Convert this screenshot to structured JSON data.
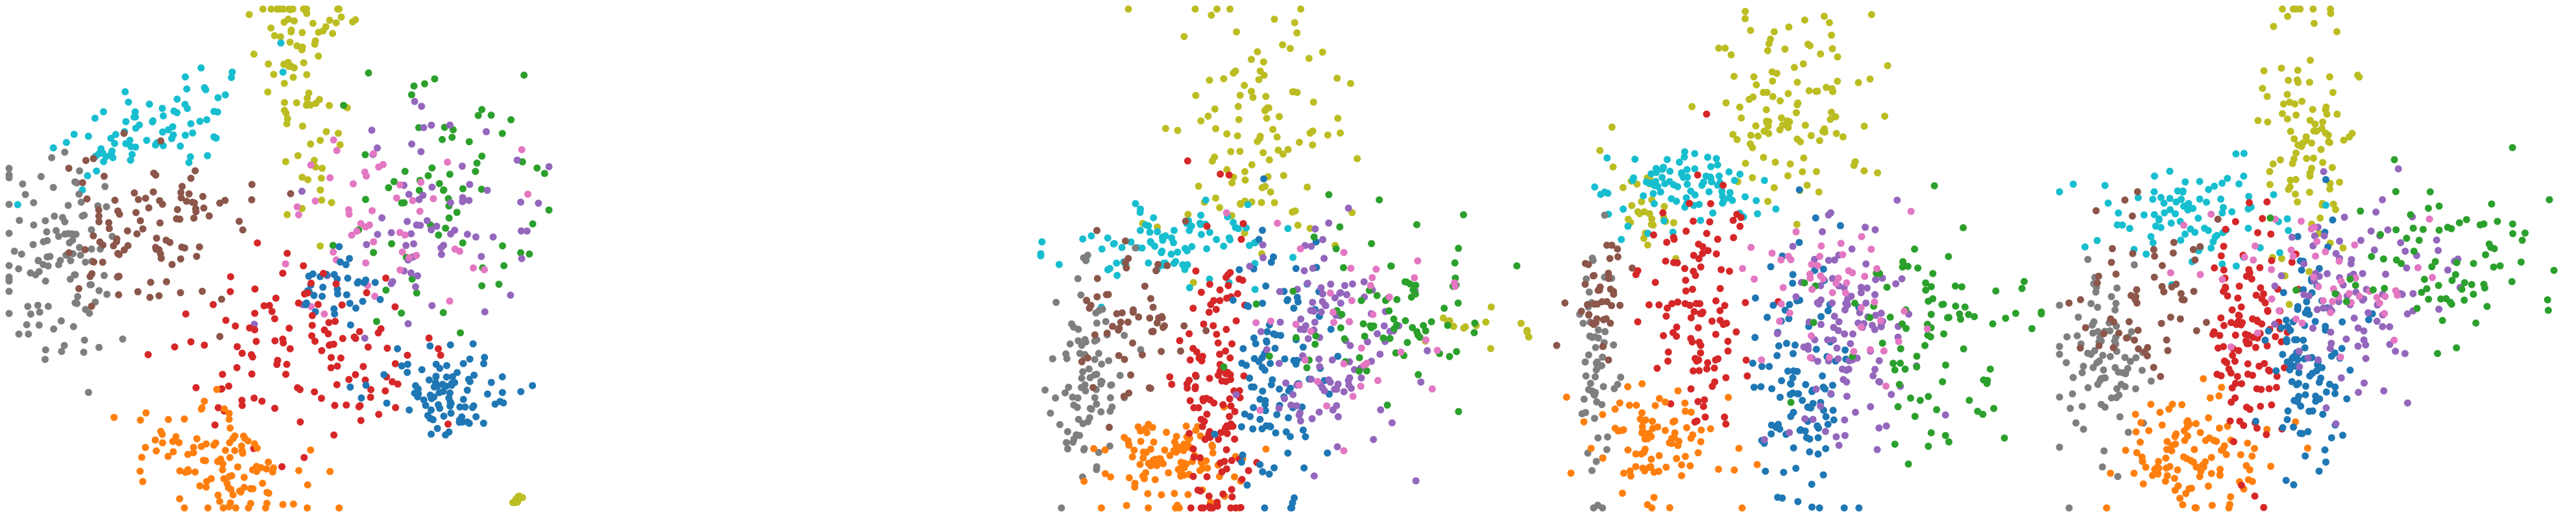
{
  "figure": {
    "title": "",
    "panel_count": 4
  },
  "palette": {
    "c0": "#1f77b4",
    "c1": "#ff7f0e",
    "c2": "#2ca02c",
    "c3": "#d62728",
    "c4": "#9467bd",
    "c5": "#8c564b",
    "c6": "#e377c2",
    "c7": "#7f7f7f",
    "c8": "#bcbd22",
    "c9": "#17becf"
  },
  "chart_data": [
    {
      "type": "scatter",
      "title": "",
      "xlabel": "",
      "ylabel": "",
      "axes_visible": false,
      "grid": false,
      "xlim": [
        0,
        100
      ],
      "ylim": [
        0,
        100
      ],
      "clusters": [
        {
          "color": "c8",
          "cx": 54,
          "cy": 83,
          "sx": 3.2,
          "sy": 14,
          "rot": 5,
          "n": 70
        },
        {
          "color": "c8",
          "cx": 57,
          "cy": 97,
          "sx": 5,
          "sy": 2,
          "rot": 0,
          "n": 20
        },
        {
          "color": "c9",
          "cx": 26,
          "cy": 77,
          "sx": 13,
          "sy": 4,
          "rot": 25,
          "n": 80
        },
        {
          "color": "c7",
          "cx": 9,
          "cy": 50,
          "sx": 6,
          "sy": 11,
          "rot": 0,
          "n": 110
        },
        {
          "color": "c5",
          "cx": 23,
          "cy": 54,
          "sx": 7,
          "sy": 9,
          "rot": 20,
          "n": 70
        },
        {
          "color": "c5",
          "cx": 33,
          "cy": 61,
          "sx": 6,
          "sy": 3,
          "rot": 0,
          "n": 30
        },
        {
          "color": "c2",
          "cx": 82,
          "cy": 63,
          "sx": 9,
          "sy": 12,
          "rot": 0,
          "n": 70
        },
        {
          "color": "c4",
          "cx": 78,
          "cy": 59,
          "sx": 10,
          "sy": 12,
          "rot": 0,
          "n": 70
        },
        {
          "color": "c6",
          "cx": 68,
          "cy": 56,
          "sx": 11,
          "sy": 9,
          "rot": 0,
          "n": 50
        },
        {
          "color": "c0",
          "cx": 61,
          "cy": 44,
          "sx": 4,
          "sy": 3,
          "rot": 0,
          "n": 35
        },
        {
          "color": "c3",
          "cx": 54,
          "cy": 31,
          "sx": 12,
          "sy": 9,
          "rot": -10,
          "n": 120
        },
        {
          "color": "c0",
          "cx": 81,
          "cy": 24,
          "sx": 6,
          "sy": 4,
          "rot": 0,
          "n": 90
        },
        {
          "color": "c1",
          "cx": 39,
          "cy": 9,
          "sx": 9,
          "sy": 5,
          "rot": -20,
          "n": 110
        },
        {
          "color": "c8",
          "cx": 94,
          "cy": 2,
          "sx": 0.6,
          "sy": 0.8,
          "rot": 0,
          "n": 10
        }
      ]
    },
    {
      "type": "scatter",
      "title": "",
      "xlabel": "",
      "ylabel": "",
      "axes_visible": false,
      "grid": false,
      "xlim": [
        0,
        100
      ],
      "ylim": [
        0,
        100
      ],
      "clusters": [
        {
          "color": "c8",
          "cx": 43,
          "cy": 73,
          "sx": 9,
          "sy": 13,
          "rot": 0,
          "n": 110
        },
        {
          "color": "c8",
          "cx": 91,
          "cy": 36,
          "sx": 6,
          "sy": 3,
          "rot": 0,
          "n": 15
        },
        {
          "color": "c9",
          "cx": 25,
          "cy": 53,
          "sx": 10,
          "sy": 4,
          "rot": 0,
          "n": 90
        },
        {
          "color": "c7",
          "cx": 10,
          "cy": 27,
          "sx": 4,
          "sy": 12,
          "rot": 0,
          "n": 90
        },
        {
          "color": "c5",
          "cx": 19,
          "cy": 37,
          "sx": 6,
          "sy": 8,
          "rot": 0,
          "n": 60
        },
        {
          "color": "c1",
          "cx": 26,
          "cy": 9,
          "sx": 7,
          "sy": 5,
          "rot": 0,
          "n": 110
        },
        {
          "color": "c3",
          "cx": 36,
          "cy": 24,
          "sx": 4,
          "sy": 14,
          "rot": 0,
          "n": 130
        },
        {
          "color": "c0",
          "cx": 48,
          "cy": 28,
          "sx": 5,
          "sy": 13,
          "rot": 0,
          "n": 110
        },
        {
          "color": "c4",
          "cx": 59,
          "cy": 34,
          "sx": 7,
          "sy": 11,
          "rot": 0,
          "n": 110
        },
        {
          "color": "c2",
          "cx": 70,
          "cy": 39,
          "sx": 10,
          "sy": 9,
          "rot": 0,
          "n": 80
        },
        {
          "color": "c6",
          "cx": 65,
          "cy": 36,
          "sx": 10,
          "sy": 9,
          "rot": 0,
          "n": 40
        }
      ]
    },
    {
      "type": "scatter",
      "title": "",
      "xlabel": "",
      "ylabel": "",
      "axes_visible": false,
      "grid": false,
      "xlim": [
        0,
        100
      ],
      "ylim": [
        0,
        100
      ],
      "clusters": [
        {
          "color": "c8",
          "cx": 49,
          "cy": 80,
          "sx": 8,
          "sy": 10,
          "rot": 0,
          "n": 110
        },
        {
          "color": "c8",
          "cx": 20,
          "cy": 60,
          "sx": 3,
          "sy": 7,
          "rot": 30,
          "n": 30
        },
        {
          "color": "c9",
          "cx": 28,
          "cy": 64,
          "sx": 8,
          "sy": 4,
          "rot": 0,
          "n": 90
        },
        {
          "color": "c7",
          "cx": 10,
          "cy": 28,
          "sx": 2,
          "sy": 12,
          "rot": 0,
          "n": 60
        },
        {
          "color": "c5",
          "cx": 11,
          "cy": 42,
          "sx": 3,
          "sy": 6,
          "rot": 0,
          "n": 40
        },
        {
          "color": "c3",
          "cx": 30,
          "cy": 40,
          "sx": 6,
          "sy": 13,
          "rot": 0,
          "n": 110
        },
        {
          "color": "c1",
          "cx": 23,
          "cy": 12,
          "sx": 7,
          "sy": 6,
          "rot": 0,
          "n": 90
        },
        {
          "color": "c0",
          "cx": 52,
          "cy": 22,
          "sx": 5,
          "sy": 14,
          "rot": 0,
          "n": 110
        },
        {
          "color": "c4",
          "cx": 62,
          "cy": 34,
          "sx": 6,
          "sy": 12,
          "rot": 0,
          "n": 110
        },
        {
          "color": "c2",
          "cx": 78,
          "cy": 36,
          "sx": 9,
          "sy": 11,
          "rot": 0,
          "n": 90
        },
        {
          "color": "c6",
          "cx": 57,
          "cy": 44,
          "sx": 9,
          "sy": 8,
          "rot": 0,
          "n": 50
        }
      ]
    },
    {
      "type": "scatter",
      "title": "",
      "xlabel": "",
      "ylabel": "",
      "axes_visible": false,
      "grid": false,
      "xlim": [
        0,
        100
      ],
      "ylim": [
        0,
        100
      ],
      "clusters": [
        {
          "color": "c8",
          "cx": 50,
          "cy": 75,
          "sx": 5,
          "sy": 13,
          "rot": 0,
          "n": 100
        },
        {
          "color": "c9",
          "cx": 27,
          "cy": 59,
          "sx": 11,
          "sy": 5,
          "rot": 0,
          "n": 90
        },
        {
          "color": "c7",
          "cx": 10,
          "cy": 32,
          "sx": 4,
          "sy": 10,
          "rot": 0,
          "n": 90
        },
        {
          "color": "c5",
          "cx": 17,
          "cy": 43,
          "sx": 7,
          "sy": 8,
          "rot": 0,
          "n": 60
        },
        {
          "color": "c1",
          "cx": 28,
          "cy": 11,
          "sx": 8,
          "sy": 6,
          "rot": 0,
          "n": 110
        },
        {
          "color": "c3",
          "cx": 38,
          "cy": 34,
          "sx": 4,
          "sy": 12,
          "rot": 0,
          "n": 120
        },
        {
          "color": "c0",
          "cx": 50,
          "cy": 32,
          "sx": 4,
          "sy": 12,
          "rot": 0,
          "n": 110
        },
        {
          "color": "c4",
          "cx": 60,
          "cy": 42,
          "sx": 8,
          "sy": 10,
          "rot": 0,
          "n": 100
        },
        {
          "color": "c6",
          "cx": 52,
          "cy": 46,
          "sx": 12,
          "sy": 8,
          "rot": 0,
          "n": 50
        },
        {
          "color": "c2",
          "cx": 78,
          "cy": 48,
          "sx": 11,
          "sy": 8,
          "rot": 0,
          "n": 80
        }
      ]
    }
  ]
}
